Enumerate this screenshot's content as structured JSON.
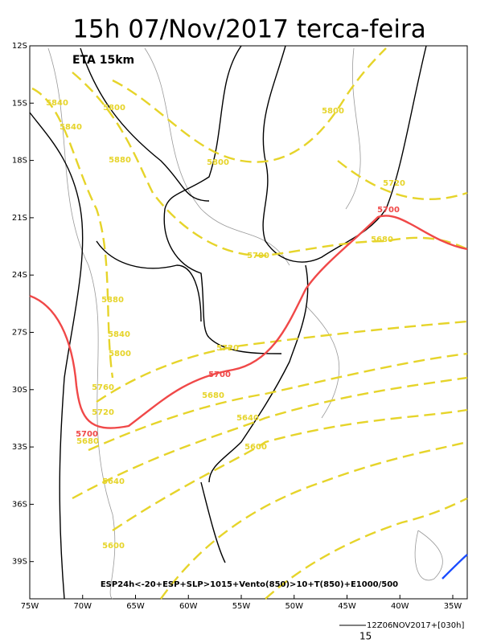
{
  "title": "15h 07/Nov/2017 terca-feira",
  "model": "ETA 15km",
  "lat_labels": [
    "12S",
    "15S",
    "18S",
    "21S",
    "24S",
    "27S",
    "30S",
    "33S",
    "36S",
    "39S"
  ],
  "lon_labels": [
    "75W",
    "70W",
    "65W",
    "60W",
    "55W",
    "50W",
    "45W",
    "40W",
    "35W"
  ],
  "contour_labels": [
    {
      "label": "5840",
      "color": "#e6d42a"
    },
    {
      "label": "5800",
      "color": "#e6d42a"
    },
    {
      "label": "5840",
      "color": "#e6d42a"
    },
    {
      "label": "5880",
      "color": "#e6d42a"
    },
    {
      "label": "5800",
      "color": "#e6d42a"
    },
    {
      "label": "5800",
      "color": "#e6d42a"
    },
    {
      "label": "5720",
      "color": "#e6d42a"
    },
    {
      "label": "5700",
      "color": "#f04848"
    },
    {
      "label": "5680",
      "color": "#e6d42a"
    },
    {
      "label": "5700",
      "color": "#e6d42a"
    },
    {
      "label": "5880",
      "color": "#e6d42a"
    },
    {
      "label": "5840",
      "color": "#e6d42a"
    },
    {
      "label": "5800",
      "color": "#e6d42a"
    },
    {
      "label": "5720",
      "color": "#e6d42a"
    },
    {
      "label": "5700",
      "color": "#f04848"
    },
    {
      "label": "5760",
      "color": "#e6d42a"
    },
    {
      "label": "5680",
      "color": "#e6d42a"
    },
    {
      "label": "5720",
      "color": "#e6d42a"
    },
    {
      "label": "5700",
      "color": "#f04848"
    },
    {
      "label": "5680",
      "color": "#e6d42a"
    },
    {
      "label": "5640",
      "color": "#e6d42a"
    },
    {
      "label": "5600",
      "color": "#e6d42a"
    },
    {
      "label": "5640",
      "color": "#e6d42a"
    },
    {
      "label": "5600",
      "color": "#e6d42a"
    }
  ],
  "legend_text": "ESP24h<-20+ESP+SLP>1015+Vento(850)>10+T(850)+E1000/500",
  "run_info": "12Z06NOV2017+[030h]",
  "vector_scale": "15"
}
